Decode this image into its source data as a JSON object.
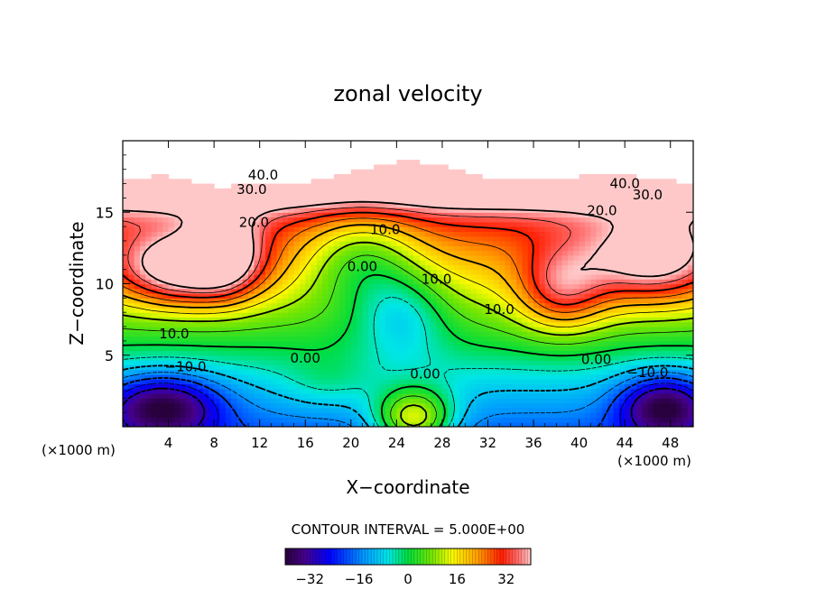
{
  "chart_data": {
    "type": "heatmap",
    "title": "zonal velocity",
    "xlabel": "X−coordinate",
    "ylabel": "Z−coordinate",
    "x_unit_left": "(×1000 m)",
    "x_unit_right": "(×1000 m)",
    "xlim": [
      0,
      50
    ],
    "ylim": [
      0,
      20
    ],
    "xticks": [
      4,
      8,
      12,
      16,
      20,
      24,
      28,
      32,
      36,
      40,
      44,
      48
    ],
    "yticks": [
      5,
      10,
      15
    ],
    "contour_interval_text": "CONTOUR INTERVAL = 5.000E+00",
    "contour_interval": 5,
    "colorbar": {
      "range": [
        -40,
        40
      ],
      "ticks": [
        -32,
        -16,
        0,
        16,
        32
      ],
      "tick_labels": [
        "−32",
        "−16",
        "0",
        "16",
        "32"
      ]
    },
    "contour_labels": [
      {
        "text": "40.0",
        "x": 12.3,
        "z": 17.6
      },
      {
        "text": "30.0",
        "x": 11.3,
        "z": 16.6
      },
      {
        "text": "20.0",
        "x": 11.5,
        "z": 14.3
      },
      {
        "text": "10.0",
        "x": 23.0,
        "z": 13.8
      },
      {
        "text": "0.00",
        "x": 21.0,
        "z": 11.2
      },
      {
        "text": "10.0",
        "x": 27.5,
        "z": 10.3
      },
      {
        "text": "10.0",
        "x": 33.0,
        "z": 8.2
      },
      {
        "text": "10.0",
        "x": 4.5,
        "z": 6.5
      },
      {
        "text": "0.00",
        "x": 16.0,
        "z": 4.8
      },
      {
        "text": "−10.0",
        "x": 5.5,
        "z": 4.2
      },
      {
        "text": "0.00",
        "x": 26.5,
        "z": 3.7
      },
      {
        "text": "0.00",
        "x": 41.5,
        "z": 4.7
      },
      {
        "text": "−10.0",
        "x": 46.0,
        "z": 3.8
      },
      {
        "text": "40.0",
        "x": 44.0,
        "z": 17.0
      },
      {
        "text": "30.0",
        "x": 46.0,
        "z": 16.2
      },
      {
        "text": "20.0",
        "x": 42.0,
        "z": 15.1
      }
    ],
    "field_features": [
      {
        "x": 5.5,
        "z": 11.0,
        "value": 36,
        "sx": 6,
        "sz": 2.5
      },
      {
        "x": 46.5,
        "z": 11.5,
        "value": 30,
        "sx": 6,
        "sz": 3
      },
      {
        "x": 25.5,
        "z": 0.5,
        "value": 34,
        "sx": 3.5,
        "sz": 2.2
      },
      {
        "x": 3.5,
        "z": 1.5,
        "value": -32,
        "sx": 5,
        "sz": 2.2
      },
      {
        "x": 47.5,
        "z": 1.5,
        "value": -32,
        "sx": 4,
        "sz": 2.2
      },
      {
        "x": 24.5,
        "z": 8.0,
        "value": -15,
        "sx": 4,
        "sz": 3
      },
      {
        "x": 38.5,
        "z": 9.5,
        "value": 24,
        "sx": 4,
        "sz": 3
      },
      {
        "x": 9.0,
        "z": 12.5,
        "value": 20,
        "sx": 3,
        "sz": 3
      },
      {
        "x": 18.0,
        "z": 3.0,
        "value": 6,
        "sx": 4,
        "sz": 2
      }
    ]
  }
}
